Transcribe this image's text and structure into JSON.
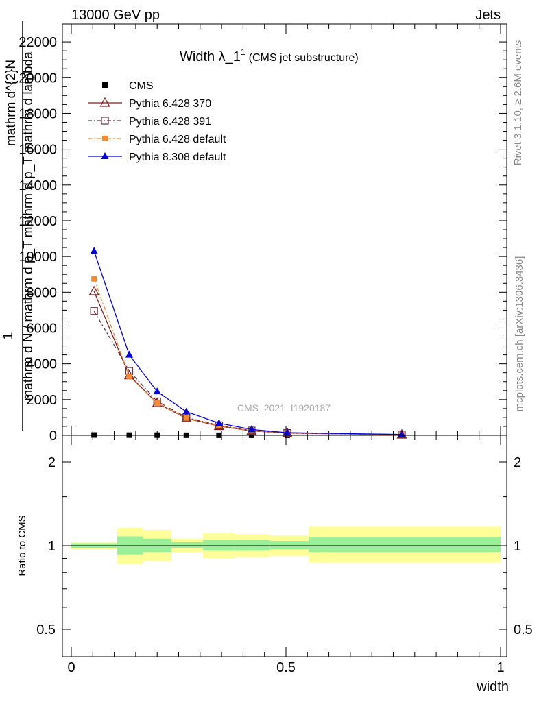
{
  "header": {
    "left": "13000 GeV pp",
    "right": "Jets"
  },
  "side_labels": {
    "rivet": "Rivet 3.1.10, ≥ 2.6M events",
    "mcplots": "mcplots.cern.ch [arXiv:1306.3436]"
  },
  "chart_data": {
    "type": "line",
    "title_main": "Width λ_1",
    "title_sup": "1",
    "title_sub": "(CMS jet substructure)",
    "watermark": "CMS_2021_I1920187",
    "xlabel": "width",
    "ylabel_top": "1",
    "ylabel_num": "mathrm d^{2}N",
    "ylabel_den": "mathrm d N / mathrm d p_T mathrm d p_T mathrm d lambda",
    "ratio_ylabel": "Ratio to CMS",
    "xlim": [
      -0.02,
      1.02
    ],
    "ylim": [
      0,
      23000
    ],
    "ratio_ylim": [
      0.4,
      2.4
    ],
    "xticks": [
      "0",
      "0.5",
      "1"
    ],
    "yticks": [
      "0",
      "2000",
      "4000",
      "6000",
      "8000",
      "10000",
      "12000",
      "14000",
      "16000",
      "18000",
      "20000",
      "22000"
    ],
    "ratio_yticks": [
      "0.5",
      "1",
      "2"
    ],
    "x": [
      0.053,
      0.135,
      0.2,
      0.268,
      0.344,
      0.42,
      0.503,
      0.77
    ],
    "series": [
      {
        "name": "CMS",
        "values": [
          18,
          13,
          10,
          7,
          5,
          3,
          2,
          1
        ]
      },
      {
        "name": "Pythia 6.428 370",
        "values": [
          8050,
          3350,
          1800,
          950,
          520,
          250,
          120,
          40
        ]
      },
      {
        "name": "Pythia 6.428 391",
        "values": [
          6950,
          3600,
          1900,
          1000,
          560,
          270,
          130,
          45
        ]
      },
      {
        "name": "Pythia 6.428 default",
        "values": [
          8750,
          3300,
          1800,
          970,
          540,
          260,
          125,
          42
        ]
      },
      {
        "name": "Pythia 8.308 default",
        "values": [
          10300,
          4500,
          2450,
          1320,
          680,
          330,
          150,
          50
        ]
      }
    ],
    "ratio_bands": [
      {
        "x0": 0.0,
        "x1": 0.107,
        "stat": [
          0.98,
          1.02
        ],
        "total": [
          0.97,
          1.03
        ]
      },
      {
        "x0": 0.107,
        "x1": 0.167,
        "stat": [
          0.93,
          1.08
        ],
        "total": [
          0.86,
          1.16
        ]
      },
      {
        "x0": 0.167,
        "x1": 0.233,
        "stat": [
          0.95,
          1.06
        ],
        "total": [
          0.88,
          1.14
        ]
      },
      {
        "x0": 0.233,
        "x1": 0.307,
        "stat": [
          0.98,
          1.03
        ],
        "total": [
          0.95,
          1.06
        ]
      },
      {
        "x0": 0.307,
        "x1": 0.38,
        "stat": [
          0.96,
          1.05
        ],
        "total": [
          0.9,
          1.11
        ]
      },
      {
        "x0": 0.38,
        "x1": 0.463,
        "stat": [
          0.96,
          1.05
        ],
        "total": [
          0.91,
          1.1
        ]
      },
      {
        "x0": 0.463,
        "x1": 0.553,
        "stat": [
          0.97,
          1.04
        ],
        "total": [
          0.92,
          1.09
        ]
      },
      {
        "x0": 0.553,
        "x1": 1.0,
        "stat": [
          0.95,
          1.07
        ],
        "total": [
          0.87,
          1.17
        ]
      }
    ],
    "colors": {
      "cms": "#000000",
      "p370": "#8b1a1a",
      "p391": "#6b3040",
      "p6def": "#f58a33",
      "p8def": "#0000dd",
      "band_stat": "#99f099",
      "band_total": "#ffff99"
    }
  }
}
